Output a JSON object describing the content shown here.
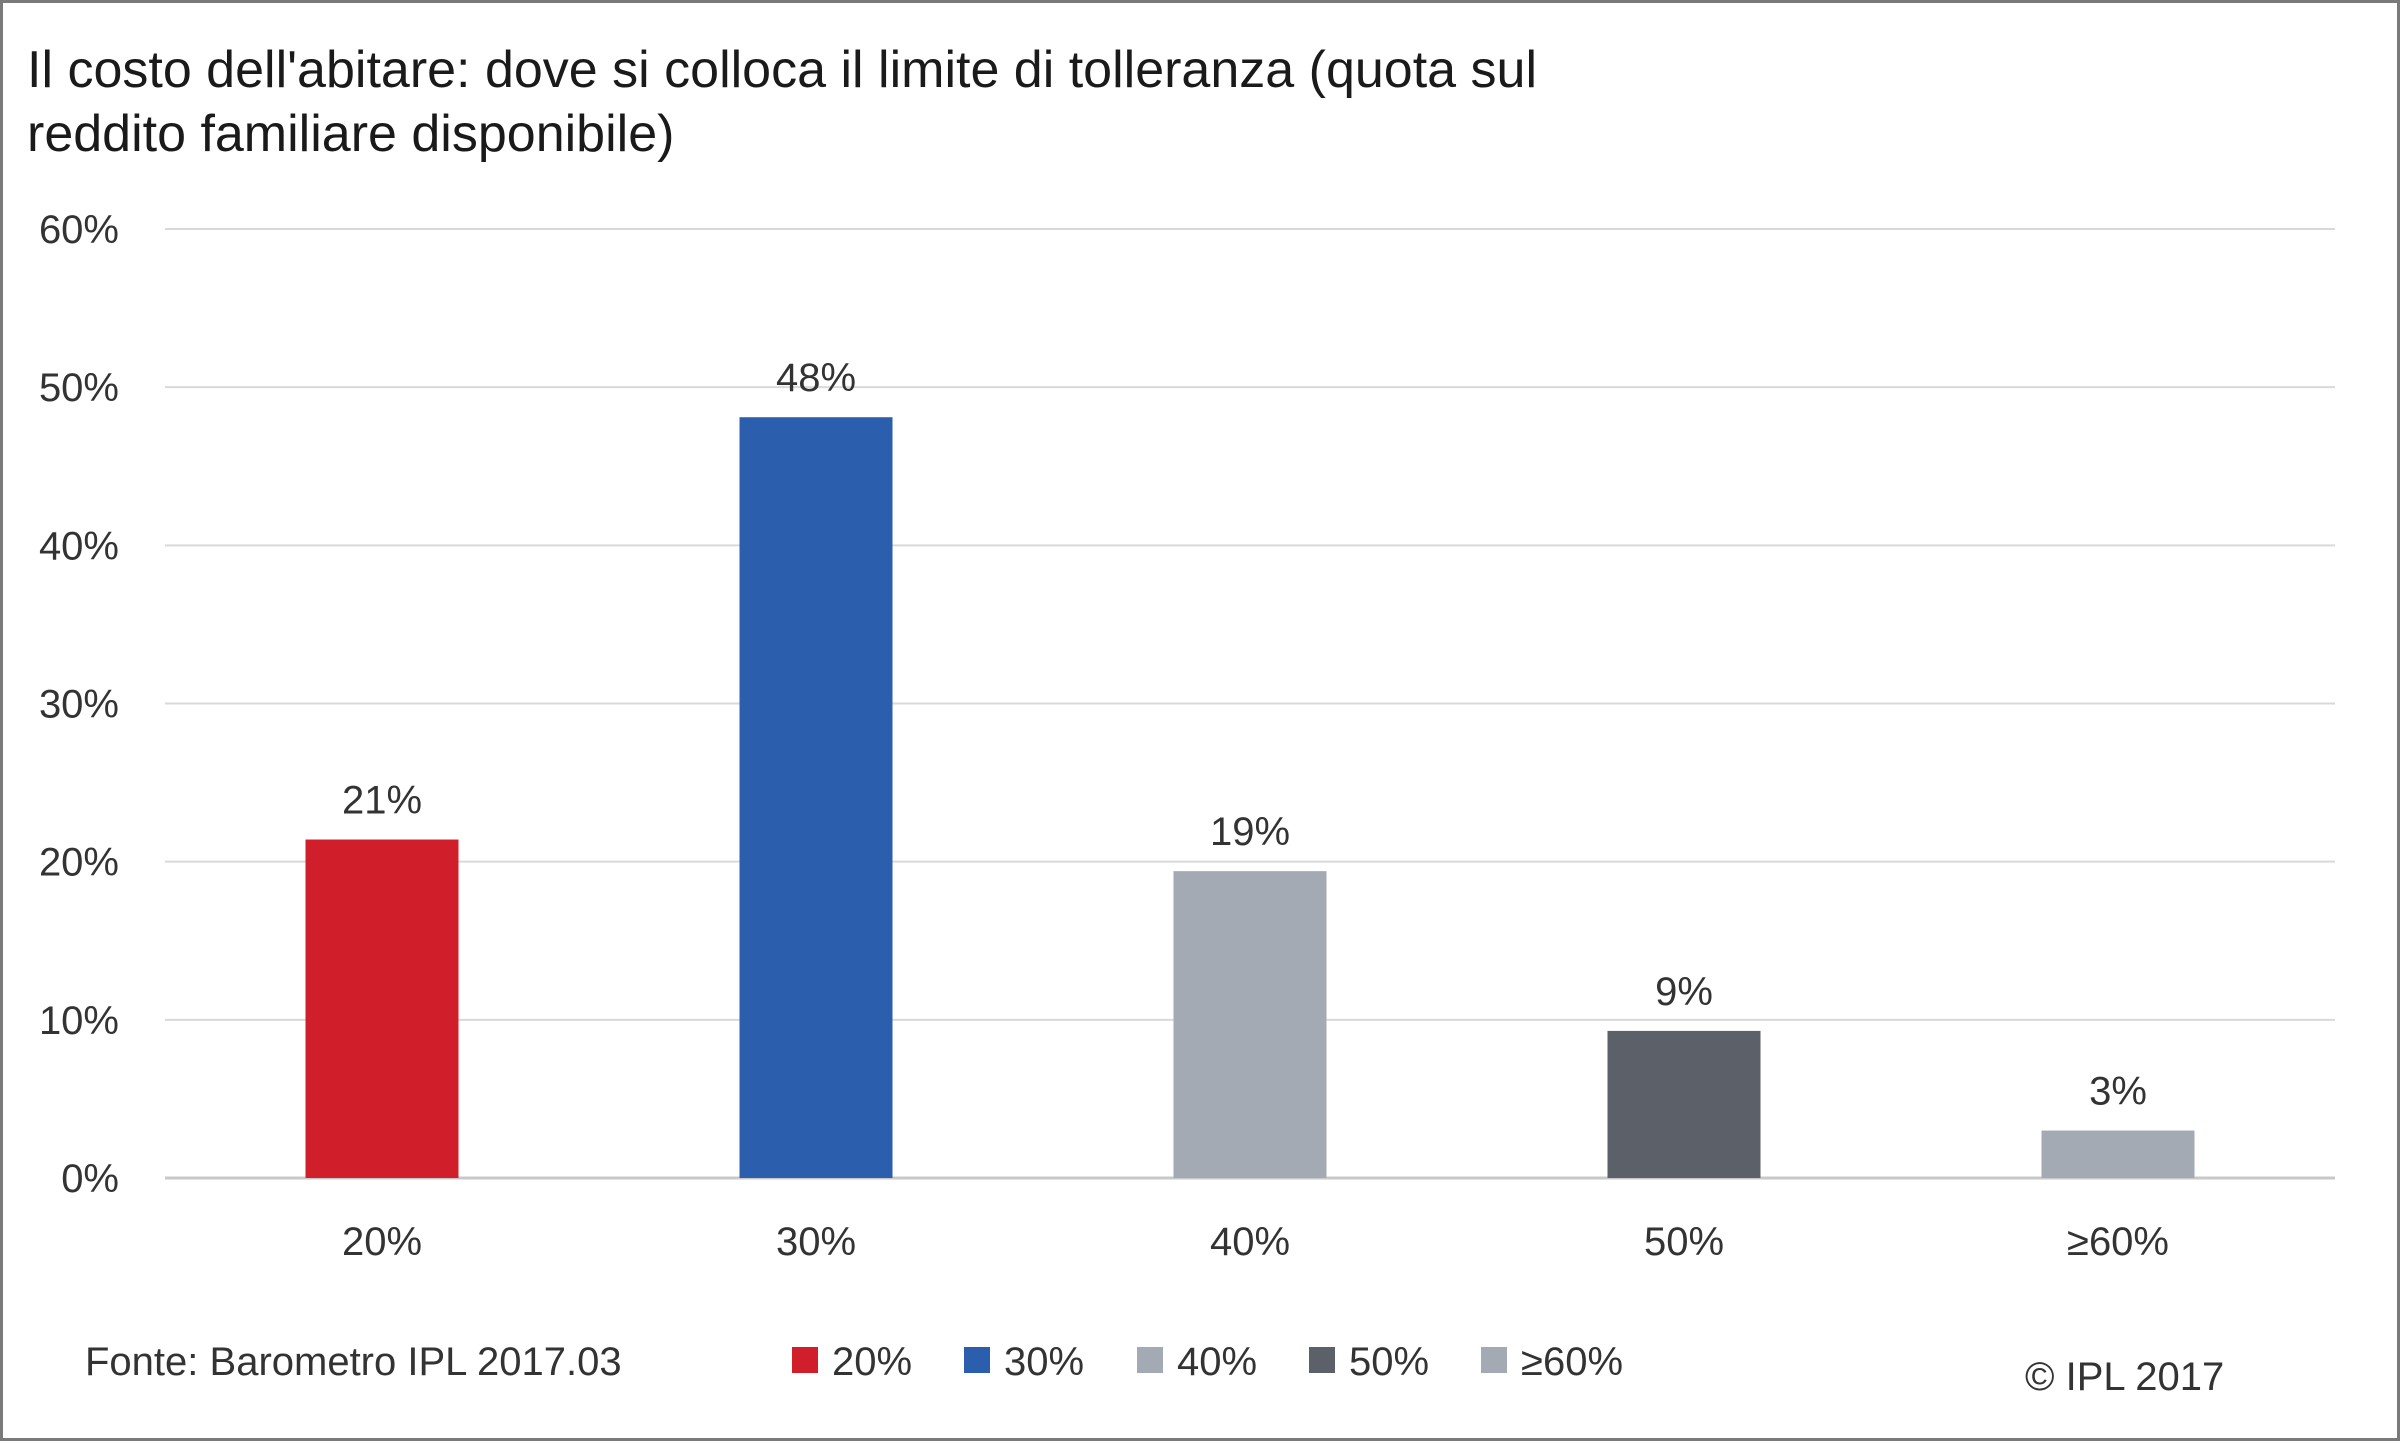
{
  "chart_data": {
    "type": "bar",
    "title_lines": [
      "Il costo dell'abitare: dove si colloca il limite di tolleranza (quota sul",
      "reddito familiare disponibile)"
    ],
    "categories": [
      "20%",
      "30%",
      "40%",
      "50%",
      "≥60%"
    ],
    "values": [
      21.4,
      48.1,
      19.4,
      9.3,
      3.0
    ],
    "data_labels": [
      "21%",
      "48%",
      "19%",
      "9%",
      "3%"
    ],
    "colors": [
      "#d01f2a",
      "#2b5fad",
      "#a4aab3",
      "#5c6068",
      "#a4aab3"
    ],
    "ylim": [
      0,
      60
    ],
    "yticks": [
      0,
      10,
      20,
      30,
      40,
      50,
      60
    ],
    "ytick_labels": [
      "0%",
      "10%",
      "20%",
      "30%",
      "40%",
      "50%",
      "60%"
    ],
    "grid": true,
    "legend_position": "bottom",
    "legend": [
      {
        "label": "20%",
        "color": "#d01f2a"
      },
      {
        "label": "30%",
        "color": "#2b5fad"
      },
      {
        "label": "40%",
        "color": "#a4aab3"
      },
      {
        "label": "50%",
        "color": "#5c6068"
      },
      {
        "label": "≥60%",
        "color": "#a4aab3"
      }
    ],
    "source": "Fonte: Barometro IPL 2017.03",
    "copyright": "© IPL 2017"
  }
}
